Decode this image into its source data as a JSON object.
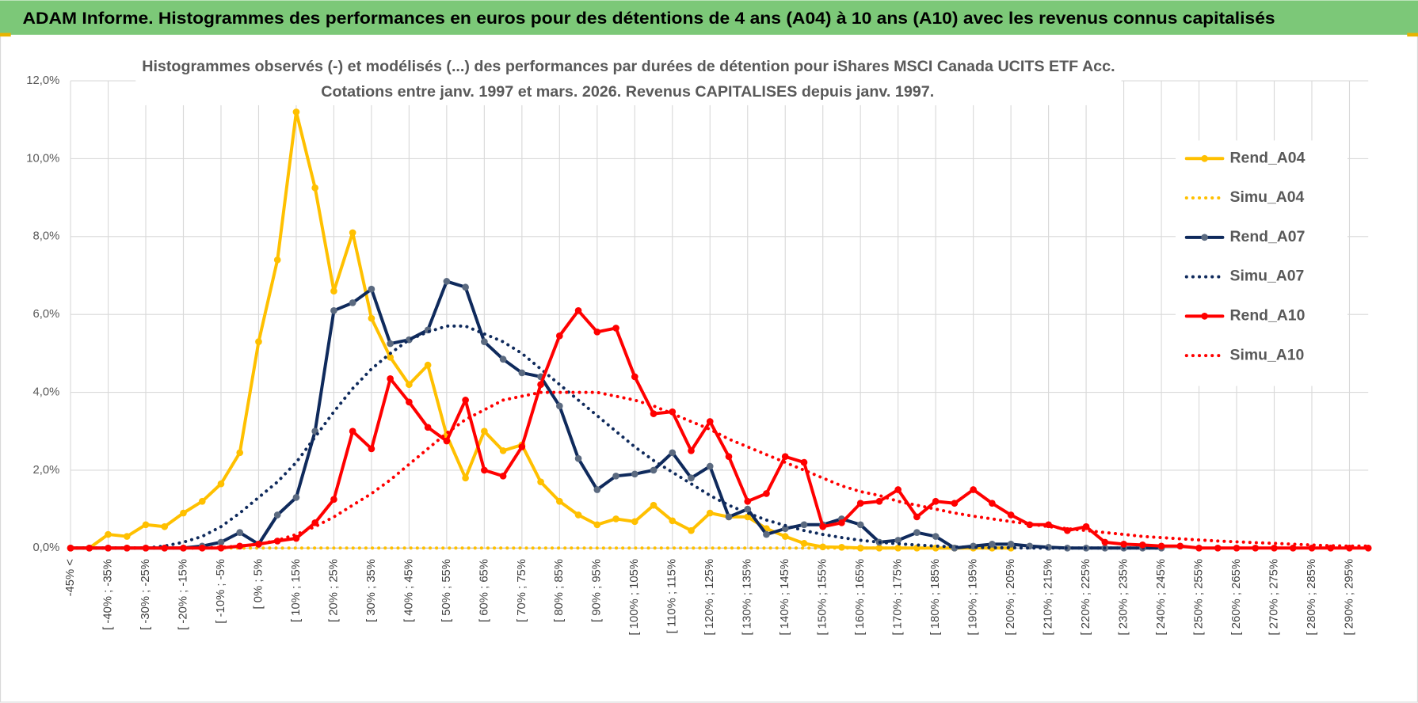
{
  "header": {
    "title": "ADAM Informe. Histogrammes des performances en euros pour des détentions de 4 ans (A04) à 10 ans (A10) avec les revenus connus capitalisés"
  },
  "chart_data": {
    "type": "line",
    "title": "Histogrammes observés (-) et modélisés (...) des performances par durées de détention pour iShares MSCI Canada UCITS ETF Acc.",
    "subtitle": "Cotations entre janv. 1997 et mars. 2026. Revenus CAPITALISES depuis janv. 1997.",
    "categories": [
      "-45% <",
      null,
      "[ -40% ; -35%",
      null,
      "[ -30% ; -25%",
      null,
      "[ -20% ; -15%",
      null,
      "[ -10% ; -5%",
      null,
      "[ 0% ; 5%",
      null,
      "[ 10% ; 15%",
      null,
      "[ 20% ; 25%",
      null,
      "[ 30% ; 35%",
      null,
      "[ 40% ; 45%",
      null,
      "[ 50% ; 55%",
      null,
      "[ 60% ; 65%",
      null,
      "[ 70% ; 75%",
      null,
      "[ 80% ; 85%",
      null,
      "[ 90% ; 95%",
      null,
      "[ 100% ; 105%",
      null,
      "[ 110% ; 115%",
      null,
      "[ 120% ; 125%",
      null,
      "[ 130% ; 135%",
      null,
      "[ 140% ; 145%",
      null,
      "[ 150% ; 155%",
      null,
      "[ 160% ; 165%",
      null,
      "[ 170% ; 175%",
      null,
      "[ 180% ; 185%",
      null,
      "[ 190% ; 195%",
      null,
      "[ 200% ; 205%",
      null,
      "[ 210% ; 215%",
      null,
      "[ 220% ; 225%",
      null,
      "[ 230% ; 235%",
      null,
      "[ 240% ; 245%",
      null,
      "[ 250% ; 255%",
      null,
      "[ 260% ; 265%",
      null,
      "[ 270% ; 275%",
      null,
      "[ 280% ; 285%",
      null,
      "[ 290% ; 295%",
      null
    ],
    "ylim": [
      0,
      12
    ],
    "yticks": [
      {
        "value": 0,
        "label": "0,0%"
      },
      {
        "value": 2,
        "label": "2,0%"
      },
      {
        "value": 4,
        "label": "4,0%"
      },
      {
        "value": 6,
        "label": "6,0%"
      },
      {
        "value": 8,
        "label": "8,0%"
      },
      {
        "value": 10,
        "label": "10,0%"
      },
      {
        "value": 12,
        "label": "12,0%"
      }
    ],
    "grid": true,
    "legend": "right",
    "series": [
      {
        "name": "Rend_A04",
        "color": "#ffc000",
        "line_style": "solid",
        "markers": true,
        "values": [
          0,
          0,
          0.35,
          0.3,
          0.6,
          0.55,
          0.9,
          1.2,
          1.65,
          2.45,
          5.3,
          7.4,
          11.2,
          9.25,
          6.6,
          8.1,
          5.9,
          4.9,
          4.2,
          4.7,
          2.9,
          1.8,
          3.0,
          2.5,
          2.65,
          1.7,
          1.2,
          0.85,
          0.6,
          0.75,
          0.68,
          1.1,
          0.7,
          0.45,
          0.9,
          0.8,
          0.8,
          0.5,
          0.3,
          0.12,
          0.03,
          0.02,
          0,
          0,
          0,
          0,
          0,
          0,
          0,
          0,
          0,
          null,
          null,
          null,
          null,
          null,
          null,
          null,
          null,
          null,
          null,
          null,
          null,
          null,
          null,
          null,
          null,
          null,
          null,
          null
        ]
      },
      {
        "name": "Simu_A04",
        "color": "#ffc000",
        "line_style": "dotted",
        "markers": false,
        "values": [
          0,
          0,
          0,
          0,
          0,
          0,
          0,
          0,
          0,
          0,
          0,
          0,
          0,
          0,
          0,
          0,
          0,
          0,
          0,
          0,
          0,
          0,
          0,
          0,
          0,
          0,
          0,
          0,
          0,
          0,
          0,
          0,
          0,
          0,
          0,
          0,
          0,
          0,
          0,
          0,
          0,
          0,
          0,
          0,
          0,
          0,
          0,
          0,
          0,
          0,
          0,
          null,
          null,
          null,
          null,
          null,
          null,
          null,
          null,
          null,
          null,
          null,
          null,
          null,
          null,
          null,
          null,
          null,
          null,
          null
        ]
      },
      {
        "name": "Rend_A07",
        "color": "#0f2a5c",
        "line_style": "solid",
        "markers": true,
        "marker_color": "#5b6a80",
        "values": [
          0,
          0,
          0,
          0,
          0,
          0,
          0,
          0.05,
          0.15,
          0.4,
          0.1,
          0.85,
          1.3,
          3.0,
          6.1,
          6.3,
          6.65,
          5.25,
          5.35,
          5.6,
          6.85,
          6.7,
          5.3,
          4.85,
          4.5,
          4.4,
          3.65,
          2.3,
          1.5,
          1.85,
          1.9,
          2.0,
          2.45,
          1.8,
          2.1,
          0.8,
          1.0,
          0.35,
          0.5,
          0.6,
          0.6,
          0.75,
          0.6,
          0.15,
          0.2,
          0.4,
          0.3,
          0,
          0.05,
          0.1,
          0.1,
          0.05,
          0.02,
          0,
          0,
          0,
          0,
          0,
          0,
          null,
          null,
          null,
          null,
          null,
          null,
          null,
          null,
          null,
          null,
          null
        ]
      },
      {
        "name": "Simu_A07",
        "color": "#0f2a5c",
        "line_style": "dotted",
        "markers": false,
        "values": [
          0,
          0,
          0,
          0,
          0,
          0.05,
          0.15,
          0.3,
          0.55,
          0.9,
          1.3,
          1.7,
          2.2,
          2.85,
          3.5,
          4.1,
          4.6,
          5.0,
          5.35,
          5.55,
          5.7,
          5.7,
          5.5,
          5.3,
          5.0,
          4.6,
          4.2,
          3.8,
          3.4,
          3.0,
          2.6,
          2.25,
          1.95,
          1.65,
          1.35,
          1.1,
          0.9,
          0.72,
          0.58,
          0.45,
          0.35,
          0.27,
          0.2,
          0.15,
          0.11,
          0.08,
          0.05,
          0.03,
          0.02,
          0.01,
          0.01,
          0,
          0,
          0,
          0,
          0,
          0,
          0,
          0,
          null,
          null,
          null,
          null,
          null,
          null,
          null,
          null,
          null,
          null,
          null
        ]
      },
      {
        "name": "Rend_A10",
        "color": "#ff0000",
        "line_style": "solid",
        "markers": true,
        "values": [
          0,
          0,
          0,
          0,
          0,
          0,
          0,
          0,
          0,
          0.05,
          0.1,
          0.18,
          0.25,
          0.65,
          1.25,
          3.0,
          2.55,
          4.35,
          3.75,
          3.1,
          2.75,
          3.8,
          2.0,
          1.85,
          2.6,
          4.2,
          5.45,
          6.1,
          5.55,
          5.65,
          4.4,
          3.45,
          3.5,
          2.5,
          3.25,
          2.35,
          1.2,
          1.4,
          2.35,
          2.2,
          0.55,
          0.65,
          1.15,
          1.2,
          1.5,
          0.8,
          1.2,
          1.15,
          1.5,
          1.15,
          0.85,
          0.6,
          0.6,
          0.45,
          0.55,
          0.15,
          0.1,
          0.08,
          0.05,
          0.05,
          0,
          0,
          0,
          0,
          0,
          0,
          0,
          0,
          0,
          0
        ]
      },
      {
        "name": "Simu_A10",
        "color": "#ff0000",
        "line_style": "dotted",
        "markers": false,
        "values": [
          0,
          0,
          0,
          0,
          0,
          0,
          0,
          0,
          0.02,
          0.05,
          0.1,
          0.2,
          0.35,
          0.55,
          0.8,
          1.1,
          1.4,
          1.75,
          2.15,
          2.55,
          2.95,
          3.3,
          3.55,
          3.8,
          3.9,
          4.0,
          4.0,
          4.0,
          4.0,
          3.9,
          3.8,
          3.65,
          3.45,
          3.25,
          3.05,
          2.8,
          2.6,
          2.4,
          2.2,
          2.0,
          1.8,
          1.6,
          1.45,
          1.35,
          1.2,
          1.1,
          1.0,
          0.9,
          0.82,
          0.75,
          0.68,
          0.62,
          0.55,
          0.5,
          0.45,
          0.4,
          0.35,
          0.3,
          0.27,
          0.24,
          0.21,
          0.18,
          0.16,
          0.14,
          0.12,
          0.1,
          0.08,
          0.06,
          0.05,
          0.05
        ]
      }
    ]
  }
}
